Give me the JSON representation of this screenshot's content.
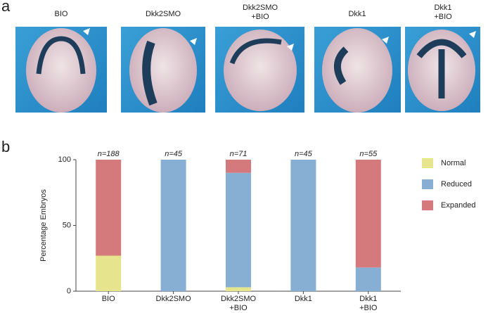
{
  "panel_a": {
    "label": "a",
    "images": [
      "BIO",
      "Dkk2SMO",
      "Dkk2SMO\n+BIO",
      "Dkk1",
      "Dkk1\n+BIO"
    ]
  },
  "chart_data": {
    "type": "stacked-bar",
    "panel_label": "b",
    "y_label": "Percentage Embryos",
    "categories": [
      "BIO",
      "Dkk2SMO",
      "Dkk2SMO\n+BIO",
      "Dkk1",
      "Dkk1\n+BIO"
    ],
    "annotations": [
      "n=188",
      "n=45",
      "n=71",
      "n=45",
      "n=55"
    ],
    "series": [
      {
        "name": "Normal",
        "color": "#e6e48c",
        "values": [
          27,
          0,
          3,
          0,
          0
        ]
      },
      {
        "name": "Reduced",
        "color": "#86afd3",
        "values": [
          0,
          100,
          87,
          100,
          18
        ]
      },
      {
        "name": "Expanded",
        "color": "#d47a7c",
        "values": [
          73,
          0,
          10,
          0,
          82
        ]
      }
    ],
    "ylim": [
      0,
      100
    ],
    "yticks": [
      0,
      50,
      100
    ],
    "legend": "right"
  }
}
